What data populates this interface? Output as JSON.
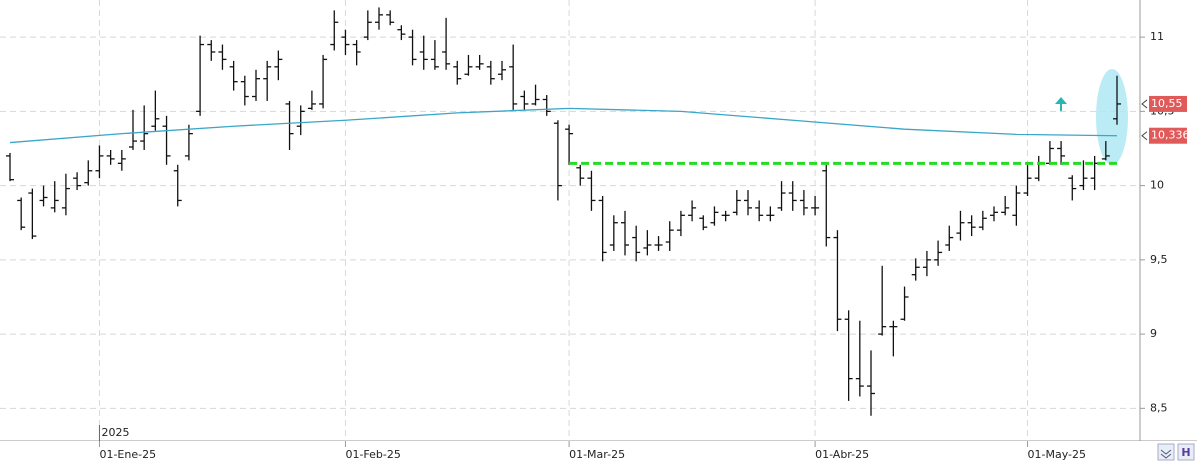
{
  "chart_data": {
    "type": "ohlc",
    "categories": [
      null,
      null,
      null,
      null,
      null,
      null,
      null,
      null,
      "01-Ene-25",
      null,
      null,
      null,
      null,
      null,
      null,
      null,
      null,
      null,
      null,
      null,
      null,
      null,
      null,
      null,
      null,
      null,
      null,
      null,
      null,
      null,
      "01-Feb-25",
      null,
      null,
      null,
      null,
      null,
      null,
      null,
      null,
      null,
      null,
      null,
      null,
      null,
      null,
      null,
      null,
      null,
      null,
      null,
      "01-Mar-25",
      null,
      null,
      null,
      null,
      null,
      null,
      null,
      null,
      null,
      null,
      null,
      null,
      null,
      null,
      null,
      null,
      null,
      null,
      null,
      null,
      null,
      "01-Abr-25",
      null,
      null,
      null,
      null,
      null,
      null,
      null,
      null,
      null,
      null,
      null,
      null,
      null,
      null,
      null,
      null,
      null,
      null,
      "01-May-25",
      null,
      null,
      null,
      null,
      null,
      null,
      null,
      null
    ],
    "year_label": "2025",
    "open": [
      10.2,
      9.9,
      9.95,
      9.9,
      9.85,
      9.85,
      10.05,
      10.02,
      10.1,
      10.2,
      10.15,
      10.26,
      10.3,
      10.4,
      10.4,
      10.1,
      10.2,
      10.5,
      10.95,
      10.9,
      10.8,
      10.7,
      10.6,
      10.72,
      10.8,
      10.55,
      10.4,
      10.52,
      10.55,
      10.95,
      11.0,
      10.95,
      11.0,
      11.1,
      11.15,
      11.05,
      11.0,
      10.9,
      10.85,
      10.9,
      10.8,
      10.75,
      10.8,
      10.8,
      10.75,
      10.8,
      10.6,
      10.55,
      10.58,
      10.42,
      10.38,
      10.12,
      10.05,
      9.9,
      9.6,
      9.75,
      9.65,
      9.58,
      9.6,
      9.62,
      9.7,
      9.8,
      9.78,
      9.75,
      9.8,
      9.82,
      9.9,
      9.85,
      9.8,
      9.85,
      9.95,
      9.9,
      9.85,
      10.1,
      9.65,
      9.1,
      8.7,
      8.65,
      9.0,
      9.05,
      9.1,
      9.4,
      9.45,
      9.5,
      9.6,
      9.68,
      9.75,
      9.72,
      9.8,
      9.82,
      9.8,
      9.95,
      10.05,
      10.15,
      10.25,
      10.05,
      10.0,
      10.05,
      10.18,
      10.45
    ],
    "high": [
      10.22,
      9.92,
      9.98,
      10.0,
      10.03,
      10.08,
      10.09,
      10.17,
      10.27,
      10.24,
      10.24,
      10.51,
      10.54,
      10.64,
      10.47,
      10.14,
      10.41,
      11.01,
      10.98,
      10.95,
      10.84,
      10.74,
      10.78,
      10.84,
      10.91,
      10.57,
      10.54,
      10.64,
      10.88,
      11.18,
      11.05,
      10.98,
      11.18,
      11.2,
      11.18,
      11.08,
      11.05,
      11.01,
      10.98,
      11.13,
      10.84,
      10.88,
      10.88,
      10.84,
      10.84,
      10.95,
      10.64,
      10.68,
      10.61,
      10.44,
      10.41,
      10.14,
      10.1,
      9.93,
      9.8,
      9.83,
      9.73,
      9.7,
      9.66,
      9.76,
      9.83,
      9.9,
      9.8,
      9.86,
      9.83,
      9.97,
      9.97,
      9.9,
      9.86,
      10.03,
      10.03,
      9.97,
      9.93,
      10.14,
      9.7,
      9.16,
      9.09,
      8.89,
      9.46,
      9.09,
      9.32,
      9.51,
      9.56,
      9.63,
      9.73,
      9.83,
      9.8,
      9.83,
      9.86,
      9.93,
      10.0,
      10.14,
      10.2,
      10.3,
      10.3,
      10.07,
      10.17,
      10.2,
      10.3,
      10.74
    ],
    "low": [
      10.03,
      9.7,
      9.64,
      9.86,
      9.82,
      9.8,
      9.97,
      10.0,
      10.05,
      10.14,
      10.1,
      10.24,
      10.24,
      10.37,
      10.14,
      9.86,
      10.17,
      10.47,
      10.84,
      10.78,
      10.64,
      10.54,
      10.57,
      10.57,
      10.71,
      10.24,
      10.34,
      10.51,
      10.52,
      10.91,
      10.88,
      10.81,
      10.98,
      11.05,
      11.08,
      10.98,
      10.81,
      10.78,
      10.78,
      10.78,
      10.68,
      10.74,
      10.78,
      10.68,
      10.71,
      10.51,
      10.51,
      10.54,
      10.47,
      9.9,
      10.14,
      10.0,
      9.83,
      9.49,
      9.56,
      9.53,
      9.49,
      9.53,
      9.56,
      9.56,
      9.66,
      9.76,
      9.7,
      9.73,
      9.76,
      9.8,
      9.8,
      9.76,
      9.76,
      9.83,
      9.83,
      9.8,
      9.8,
      9.59,
      9.02,
      8.55,
      8.58,
      8.45,
      8.99,
      8.85,
      9.09,
      9.36,
      9.39,
      9.46,
      9.56,
      9.63,
      9.66,
      9.7,
      9.76,
      9.8,
      9.73,
      9.93,
      10.03,
      10.14,
      10.14,
      9.9,
      9.97,
      9.97,
      10.17,
      10.41
    ],
    "close": [
      10.04,
      9.72,
      9.66,
      9.92,
      9.9,
      9.98,
      10.0,
      10.1,
      10.2,
      10.18,
      10.18,
      10.3,
      10.35,
      10.45,
      10.2,
      9.9,
      10.35,
      10.95,
      10.9,
      10.85,
      10.7,
      10.6,
      10.72,
      10.8,
      10.85,
      10.35,
      10.5,
      10.55,
      10.85,
      11.1,
      10.95,
      10.9,
      11.1,
      11.15,
      11.1,
      11.02,
      10.85,
      10.85,
      10.8,
      10.82,
      10.72,
      10.8,
      10.82,
      10.72,
      10.78,
      10.55,
      10.55,
      10.58,
      10.5,
      10.0,
      10.35,
      10.05,
      9.9,
      9.55,
      9.75,
      9.6,
      9.55,
      9.6,
      9.6,
      9.7,
      9.8,
      9.85,
      9.72,
      9.82,
      9.8,
      9.9,
      9.85,
      9.8,
      9.8,
      9.95,
      9.9,
      9.85,
      9.85,
      9.65,
      9.1,
      8.7,
      8.65,
      8.6,
      9.05,
      9.05,
      9.25,
      9.45,
      9.5,
      9.55,
      9.65,
      9.75,
      9.72,
      9.78,
      9.82,
      9.85,
      9.95,
      10.05,
      10.15,
      10.25,
      10.2,
      9.98,
      10.05,
      10.15,
      10.2,
      10.55
    ],
    "bar_color": "#111111",
    "ma_x": [
      0,
      10,
      20,
      30,
      40,
      50,
      60,
      70,
      80,
      90,
      99
    ],
    "ma": [
      10.29,
      10.35,
      10.4,
      10.44,
      10.49,
      10.52,
      10.5,
      10.44,
      10.38,
      10.345,
      10.336
    ],
    "ma_color": "#3aa6c8",
    "support_line": {
      "value": 10.15,
      "from": 50,
      "to": 99,
      "color": "#22dd22"
    },
    "last_price_label": {
      "value": 10.55,
      "label": "10,55"
    },
    "ma_label": {
      "value": 10.336,
      "label": "10,336"
    },
    "ylim": [
      8.28,
      11.25
    ],
    "yticks": [
      {
        "value": 8.5,
        "label": "8,5"
      },
      9,
      {
        "value": 9.5,
        "label": "9,5"
      },
      10,
      {
        "value": 10.5,
        "label": "10,5"
      },
      11
    ],
    "grid": true
  }
}
